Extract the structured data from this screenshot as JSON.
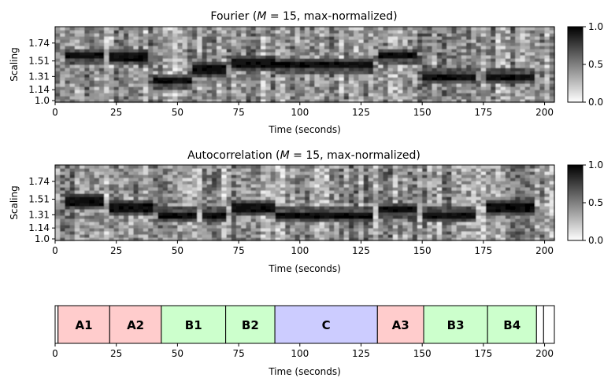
{
  "chart_data": [
    {
      "type": "heatmap",
      "title": "Fourier (M = 15, max-normalized)",
      "title_parts": {
        "prefix": "Fourier (",
        "var": "M",
        "eq": " = 15, max-normalized)"
      },
      "xlabel": "Time (seconds)",
      "ylabel": "Scaling",
      "xlim": [
        0,
        204
      ],
      "xticks": [
        0,
        25,
        50,
        75,
        100,
        125,
        150,
        175,
        200
      ],
      "yticks": [
        "1.0",
        "1.14",
        "1.31",
        "1.51",
        "1.74"
      ],
      "ytick_values": [
        1.0,
        1.14,
        1.31,
        1.51,
        1.74
      ],
      "ylim": [
        0.98,
        1.95
      ],
      "colormap": "gray_r",
      "colorbar": {
        "ticks": [
          "0.0",
          "0.5",
          "1.0"
        ],
        "range": [
          0,
          1
        ]
      },
      "bands": [
        {
          "x0": 4,
          "x1": 20,
          "y": 1.58
        },
        {
          "x0": 22,
          "x1": 38,
          "y": 1.57
        },
        {
          "x0": 40,
          "x1": 55,
          "y": 1.26
        },
        {
          "x0": 56,
          "x1": 70,
          "y": 1.4
        },
        {
          "x0": 72,
          "x1": 90,
          "y": 1.48
        },
        {
          "x0": 90,
          "x1": 130,
          "y": 1.46
        },
        {
          "x0": 132,
          "x1": 148,
          "y": 1.58
        },
        {
          "x0": 150,
          "x1": 172,
          "y": 1.31
        },
        {
          "x0": 176,
          "x1": 196,
          "y": 1.31
        }
      ]
    },
    {
      "type": "heatmap",
      "title": "Autocorrelation (M = 15, max-normalized)",
      "title_parts": {
        "prefix": "Autocorrelation (",
        "var": "M",
        "eq": " = 15, max-normalized)"
      },
      "xlabel": "Time (seconds)",
      "ylabel": "Scaling",
      "xlim": [
        0,
        204
      ],
      "xticks": [
        0,
        25,
        50,
        75,
        100,
        125,
        150,
        175,
        200
      ],
      "yticks": [
        "1.0",
        "1.14",
        "1.31",
        "1.51",
        "1.74"
      ],
      "ytick_values": [
        1.0,
        1.14,
        1.31,
        1.51,
        1.74
      ],
      "ylim": [
        0.98,
        1.95
      ],
      "colormap": "gray_r",
      "colorbar": {
        "ticks": [
          "0.0",
          "0.5",
          "1.0"
        ],
        "range": [
          0,
          1
        ]
      },
      "bands": [
        {
          "x0": 4,
          "x1": 20,
          "y": 1.48
        },
        {
          "x0": 22,
          "x1": 40,
          "y": 1.4
        },
        {
          "x0": 42,
          "x1": 58,
          "y": 1.31
        },
        {
          "x0": 60,
          "x1": 70,
          "y": 1.31
        },
        {
          "x0": 72,
          "x1": 90,
          "y": 1.4
        },
        {
          "x0": 90,
          "x1": 130,
          "y": 1.31
        },
        {
          "x0": 132,
          "x1": 148,
          "y": 1.38
        },
        {
          "x0": 150,
          "x1": 172,
          "y": 1.31
        },
        {
          "x0": 176,
          "x1": 196,
          "y": 1.4
        }
      ]
    },
    {
      "type": "bar",
      "subtype": "segments",
      "xlabel": "Time (seconds)",
      "xlim": [
        0,
        204
      ],
      "xticks": [
        0,
        25,
        50,
        75,
        100,
        125,
        150,
        175,
        200
      ],
      "segments": [
        {
          "label": "",
          "start": 0,
          "end": 1.2,
          "color": "#ffffff"
        },
        {
          "label": "A1",
          "start": 1.2,
          "end": 22.3,
          "color": "#ffcccc"
        },
        {
          "label": "A2",
          "start": 22.3,
          "end": 43.4,
          "color": "#ffcccc"
        },
        {
          "label": "B1",
          "start": 43.4,
          "end": 69.7,
          "color": "#ccffcc"
        },
        {
          "label": "B2",
          "start": 69.7,
          "end": 89.8,
          "color": "#ccffcc"
        },
        {
          "label": "C",
          "start": 89.8,
          "end": 131.7,
          "color": "#ccccff"
        },
        {
          "label": "A3",
          "start": 131.7,
          "end": 150.6,
          "color": "#ffcccc"
        },
        {
          "label": "B3",
          "start": 150.6,
          "end": 176.7,
          "color": "#ccffcc"
        },
        {
          "label": "B4",
          "start": 176.7,
          "end": 196.7,
          "color": "#ccffcc"
        },
        {
          "label": "",
          "start": 196.7,
          "end": 199.6,
          "color": "#ffffff"
        },
        {
          "label": "",
          "start": 199.6,
          "end": 204,
          "color": "#ffffff"
        }
      ]
    }
  ]
}
